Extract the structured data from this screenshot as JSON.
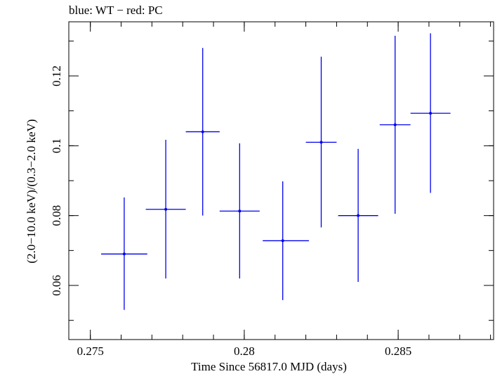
{
  "chart_data": {
    "type": "scatter",
    "title": "blue: WT − red: PC",
    "xlabel": "Time Since 56817.0 MJD (days)",
    "ylabel": "(2.0−10.0 keV)/(0.3−2.0 keV)",
    "xlim": [
      0.2743,
      0.2881
    ],
    "ylim": [
      0.0445,
      0.1355
    ],
    "x_ticks": [
      {
        "value": 0.275,
        "label": "0.275"
      },
      {
        "value": 0.28,
        "label": "0.28"
      },
      {
        "value": 0.285,
        "label": "0.285"
      }
    ],
    "y_ticks": [
      {
        "value": 0.06,
        "label": "0.06"
      },
      {
        "value": 0.08,
        "label": "0.08"
      },
      {
        "value": 0.1,
        "label": "0.1"
      },
      {
        "value": 0.12,
        "label": "0.12"
      }
    ],
    "x_minor_step": 0.001,
    "y_minor_step": 0.01,
    "grid": false,
    "series": [
      {
        "color": "#0000ee",
        "points": [
          {
            "x": 0.2761,
            "y": 0.069,
            "xlo": 0.27535,
            "xhi": 0.27685,
            "ylo": 0.053,
            "yhi": 0.0852
          },
          {
            "x": 0.27745,
            "y": 0.0818,
            "xlo": 0.2768,
            "xhi": 0.2781,
            "ylo": 0.062,
            "yhi": 0.1017
          },
          {
            "x": 0.27865,
            "y": 0.104,
            "xlo": 0.2781,
            "xhi": 0.2792,
            "ylo": 0.08,
            "yhi": 0.128
          },
          {
            "x": 0.27985,
            "y": 0.0813,
            "xlo": 0.2792,
            "xhi": 0.2805,
            "ylo": 0.062,
            "yhi": 0.1007
          },
          {
            "x": 0.28125,
            "y": 0.0728,
            "xlo": 0.2806,
            "xhi": 0.2821,
            "ylo": 0.0558,
            "yhi": 0.0898
          },
          {
            "x": 0.2825,
            "y": 0.101,
            "xlo": 0.282,
            "xhi": 0.283,
            "ylo": 0.0766,
            "yhi": 0.1255
          },
          {
            "x": 0.2837,
            "y": 0.08,
            "xlo": 0.28305,
            "xhi": 0.28435,
            "ylo": 0.061,
            "yhi": 0.0991
          },
          {
            "x": 0.2849,
            "y": 0.106,
            "xlo": 0.2844,
            "xhi": 0.2854,
            "ylo": 0.0805,
            "yhi": 0.1315
          },
          {
            "x": 0.28605,
            "y": 0.1093,
            "xlo": 0.2854,
            "xhi": 0.2867,
            "ylo": 0.0865,
            "yhi": 0.1322
          }
        ]
      }
    ]
  }
}
